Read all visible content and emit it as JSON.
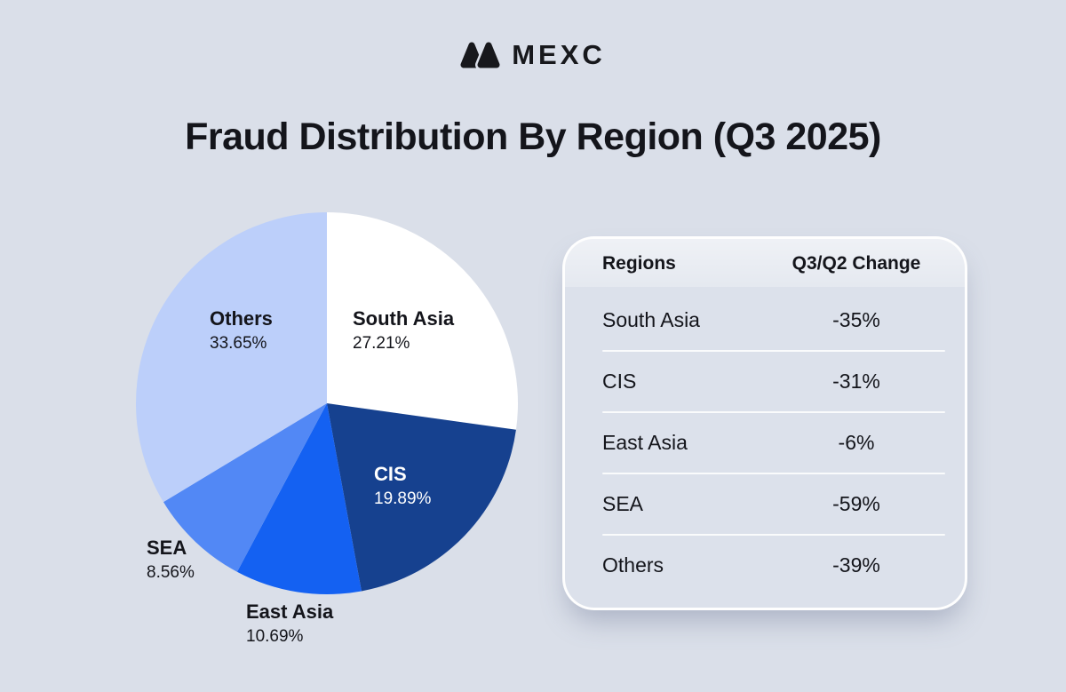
{
  "brand": {
    "name": "MEXC"
  },
  "title": "Fraud Distribution By Region (Q3 2025)",
  "colors": {
    "page_bg": "#dadfe9",
    "text_dark": "#14151b",
    "logo_dark": "#17181c",
    "card_bg": "#dce1eb",
    "card_border": "#ffffff",
    "divider": "#f2f5fa"
  },
  "chart_data": {
    "type": "pie",
    "title": "Fraud Distribution By Region (Q3 2025)",
    "start_angle_deg": 0,
    "direction": "clockwise",
    "legend_position": "none",
    "slices": [
      {
        "label": "South Asia",
        "value": 27.21,
        "display": "27.21%",
        "color": "#ffffff",
        "label_color": "#14151b"
      },
      {
        "label": "CIS",
        "value": 19.89,
        "display": "19.89%",
        "color": "#16418f",
        "label_color": "#ffffff"
      },
      {
        "label": "East Asia",
        "value": 10.69,
        "display": "10.69%",
        "color": "#1461f2",
        "label_color": "#14151b"
      },
      {
        "label": "SEA",
        "value": 8.56,
        "display": "8.56%",
        "color": "#5288f5",
        "label_color": "#14151b"
      },
      {
        "label": "Others",
        "value": 33.65,
        "display": "33.65%",
        "color": "#bccffa",
        "label_color": "#14151b"
      }
    ]
  },
  "table": {
    "headers": [
      "Regions",
      "Q3/Q2 Change"
    ],
    "rows": [
      {
        "region": "South Asia",
        "change": "-35%"
      },
      {
        "region": "CIS",
        "change": "-31%"
      },
      {
        "region": "East Asia",
        "change": "-6%"
      },
      {
        "region": "SEA",
        "change": "-59%"
      },
      {
        "region": "Others",
        "change": "-39%"
      }
    ]
  }
}
